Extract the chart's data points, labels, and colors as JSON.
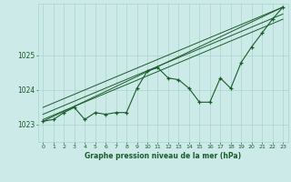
{
  "bg_color": "#cceae8",
  "grid_color": "#aad4cc",
  "line_color": "#1a5c2a",
  "marker_color": "#1a5c2a",
  "title": "Graphe pression niveau de la mer (hPa)",
  "ylim": [
    1022.5,
    1026.5
  ],
  "xlim": [
    -0.5,
    23.5
  ],
  "yticks": [
    1023,
    1024,
    1025
  ],
  "xticks": [
    0,
    1,
    2,
    3,
    4,
    5,
    6,
    7,
    8,
    9,
    10,
    11,
    12,
    13,
    14,
    15,
    16,
    17,
    18,
    19,
    20,
    21,
    22,
    23
  ],
  "hours": [
    0,
    1,
    2,
    3,
    4,
    5,
    6,
    7,
    8,
    9,
    10,
    11,
    12,
    13,
    14,
    15,
    16,
    17,
    18,
    19,
    20,
    21,
    22,
    23
  ],
  "pressure": [
    1023.1,
    1023.15,
    1023.35,
    1023.5,
    1023.15,
    1023.35,
    1023.3,
    1023.35,
    1023.35,
    1024.05,
    1024.55,
    1024.65,
    1024.35,
    1024.3,
    1024.05,
    1023.65,
    1023.65,
    1024.35,
    1024.05,
    1024.8,
    1025.25,
    1025.65,
    1026.05,
    1026.4
  ],
  "trend_lines": [
    [
      [
        0,
        1023.1
      ],
      [
        23,
        1026.4
      ]
    ],
    [
      [
        0,
        1023.15
      ],
      [
        23,
        1026.05
      ]
    ],
    [
      [
        0,
        1023.3
      ],
      [
        23,
        1026.2
      ]
    ],
    [
      [
        0,
        1023.5
      ],
      [
        23,
        1026.4
      ]
    ]
  ]
}
